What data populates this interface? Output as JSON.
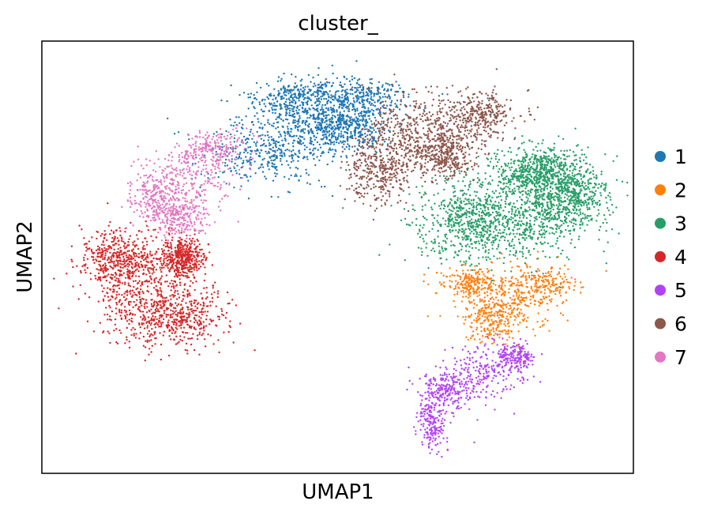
{
  "chart_data": {
    "type": "scatter",
    "title": "cluster_",
    "xlabel": "UMAP1",
    "ylabel": "UMAP2",
    "xlim": [
      0,
      100
    ],
    "ylim": [
      0,
      100
    ],
    "grid": false,
    "legend_placement": "right",
    "series": [
      {
        "name": "1",
        "color": "#1f77b4",
        "n": 1700,
        "regions": [
          [
            46,
            81,
            11,
            6
          ],
          [
            38,
            74,
            9,
            7
          ],
          [
            54,
            87,
            7,
            4
          ],
          [
            43,
            87,
            6,
            4
          ],
          [
            51,
            80,
            6,
            5
          ]
        ]
      },
      {
        "name": "2",
        "color": "#ff7f0e",
        "n": 850,
        "regions": [
          [
            79,
            40,
            8,
            7
          ],
          [
            76,
            36,
            4,
            5
          ],
          [
            85,
            44,
            5,
            4
          ],
          [
            73,
            44,
            5,
            3
          ]
        ]
      },
      {
        "name": "3",
        "color": "#279e68",
        "n": 2300,
        "regions": [
          [
            81,
            60,
            11,
            10
          ],
          [
            72,
            58,
            8,
            8
          ],
          [
            89,
            64,
            6,
            8
          ],
          [
            84,
            70,
            6,
            5
          ]
        ]
      },
      {
        "name": "4",
        "color": "#d62728",
        "n": 1700,
        "regions": [
          [
            17,
            43,
            9,
            10
          ],
          [
            22,
            36,
            8,
            6
          ],
          [
            13,
            50,
            6,
            6
          ],
          [
            24,
            50,
            3,
            4
          ]
        ]
      },
      {
        "name": "5",
        "color": "#b042f5",
        "n": 800,
        "regions": [
          [
            75,
            23,
            6,
            6
          ],
          [
            68,
            19,
            4,
            4
          ],
          [
            66,
            12,
            2,
            6
          ],
          [
            80,
            27,
            3,
            3
          ]
        ]
      },
      {
        "name": "6",
        "color": "#8c564b",
        "n": 1500,
        "regions": [
          [
            63,
            79,
            8,
            8
          ],
          [
            57,
            70,
            5,
            7
          ],
          [
            74,
            83,
            6,
            5
          ],
          [
            68,
            74,
            5,
            5
          ]
        ]
      },
      {
        "name": "7",
        "color": "#e377c2",
        "n": 900,
        "regions": [
          [
            25,
            68,
            7,
            7
          ],
          [
            19,
            64,
            4,
            5
          ],
          [
            29,
            75,
            5,
            4
          ],
          [
            23,
            59,
            4,
            4
          ]
        ]
      }
    ]
  }
}
